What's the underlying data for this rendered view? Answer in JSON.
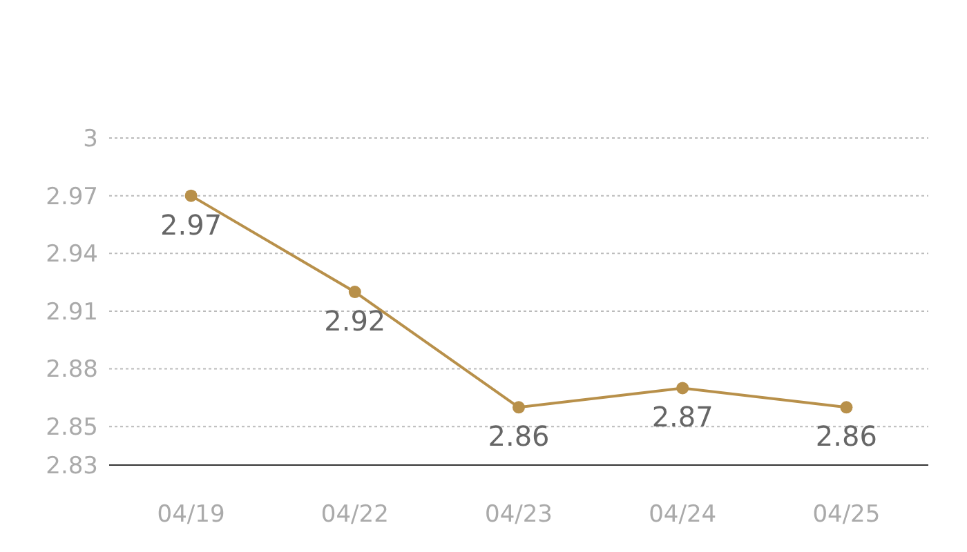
{
  "chart_data": {
    "type": "line",
    "categories": [
      "04/19",
      "04/22",
      "04/23",
      "04/24",
      "04/25"
    ],
    "series": [
      {
        "color": "#b8904a",
        "values": [
          2.97,
          2.92,
          2.86,
          2.87,
          2.86
        ]
      }
    ],
    "ylim": [
      2.83,
      3
    ],
    "yticks": [
      2.83,
      2.85,
      2.88,
      2.91,
      2.94,
      2.97,
      3
    ],
    "grid": "y",
    "marker": "circle",
    "line_style": "solid",
    "data_labels": true
  }
}
